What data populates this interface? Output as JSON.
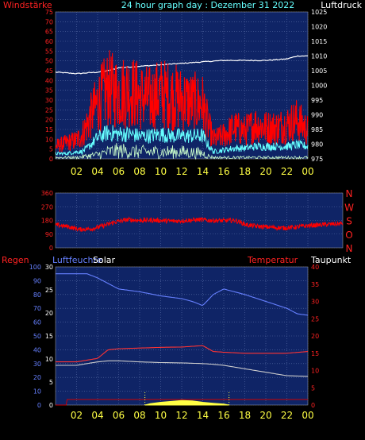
{
  "title": "24 hour graph day : Dezember 31 2022",
  "chart_data": [
    {
      "type": "line",
      "label_left": "Windstärke",
      "label_right": "Luftdruck",
      "x_ticks": [
        "02",
        "04",
        "06",
        "08",
        "10",
        "12",
        "14",
        "16",
        "18",
        "20",
        "22",
        "00"
      ],
      "y_left_ticks": [
        "0",
        "5",
        "10",
        "15",
        "20",
        "25",
        "30",
        "35",
        "40",
        "45",
        "50",
        "55",
        "60",
        "65",
        "70",
        "75"
      ],
      "y_left_lim": [
        0,
        75
      ],
      "y_right_ticks": [
        "975",
        "980",
        "985",
        "990",
        "995",
        "1000",
        "1005",
        "1010",
        "1015",
        "1020",
        "1025"
      ],
      "y_right_lim": [
        975,
        1025
      ],
      "series": [
        {
          "key": "pressure",
          "axis": "right",
          "color": "#ffffff",
          "x": [
            0,
            2,
            4,
            5,
            6,
            8,
            10,
            12,
            14,
            16,
            18,
            20,
            22,
            23,
            24
          ],
          "values": [
            1004.5,
            1004.0,
            1004.5,
            1005.0,
            1006.0,
            1006.5,
            1007.0,
            1007.5,
            1008.0,
            1008.5,
            1008.5,
            1008.5,
            1009.0,
            1010.0,
            1010.0
          ]
        },
        {
          "key": "gust",
          "axis": "left",
          "color": "#ff0000",
          "x": [
            0,
            1,
            2,
            2.5,
            3,
            4,
            5,
            6,
            7,
            8,
            9,
            10,
            11,
            12,
            13,
            14,
            14.5,
            15,
            16,
            17,
            18,
            19,
            20,
            21,
            22,
            23,
            24
          ],
          "values": [
            8,
            10,
            12,
            15,
            22,
            36,
            45,
            42,
            44,
            40,
            38,
            42,
            40,
            38,
            36,
            35,
            22,
            12,
            15,
            20,
            18,
            22,
            20,
            20,
            22,
            25,
            18
          ]
        },
        {
          "key": "wind",
          "axis": "left",
          "color": "#66ffff",
          "x": [
            0,
            1,
            2,
            2.5,
            3,
            4,
            5,
            6,
            7,
            8,
            9,
            10,
            11,
            12,
            13,
            14,
            14.5,
            15,
            16,
            17,
            18,
            19,
            20,
            21,
            22,
            23,
            24
          ],
          "values": [
            3,
            3,
            4,
            4,
            6,
            12,
            15,
            14,
            14,
            13,
            13,
            14,
            13,
            13,
            13,
            13,
            8,
            4,
            5,
            6,
            6,
            7,
            7,
            7,
            7,
            8,
            7
          ]
        },
        {
          "key": "calm",
          "axis": "left",
          "color": "#ccffcc",
          "x": [
            0,
            2,
            3,
            4,
            5,
            6,
            8,
            10,
            12,
            14,
            14.5,
            15,
            16,
            18,
            20,
            22,
            24
          ],
          "values": [
            1,
            1,
            2,
            3,
            5,
            6,
            5,
            5,
            5,
            4,
            2,
            1,
            1,
            1,
            1,
            1,
            1
          ]
        }
      ]
    },
    {
      "type": "line",
      "y_ticks": [
        "0",
        "90",
        "180",
        "270",
        "360"
      ],
      "y_lim": [
        0,
        360
      ],
      "direction_labels": [
        "N",
        "W",
        "S",
        "O",
        "N"
      ],
      "x": [
        0,
        1,
        2,
        3,
        4,
        5,
        6,
        7,
        8,
        9,
        10,
        11,
        12,
        13,
        14,
        15,
        16,
        17,
        18,
        19,
        20,
        21,
        22,
        23,
        24
      ],
      "values": [
        150,
        140,
        120,
        125,
        145,
        170,
        185,
        180,
        182,
        178,
        175,
        180,
        185,
        180,
        178,
        180,
        150,
        140,
        135,
        130,
        135,
        145,
        150,
        155,
        160
      ],
      "color": "#ff0000"
    },
    {
      "type": "line",
      "labels": {
        "regen": "Regen",
        "luftfeuchte": "Luftfeuchte",
        "solar": "Solar",
        "temperatur": "Temperatur",
        "taupunkt": "Taupunkt"
      },
      "y_left1_ticks": [
        "0",
        "10",
        "20",
        "30",
        "40",
        "50",
        "60",
        "70",
        "80",
        "90",
        "100"
      ],
      "y_left1_lim": [
        0,
        100
      ],
      "y_left2_ticks": [
        "0",
        "5",
        "10",
        "15",
        "20",
        "25",
        "30"
      ],
      "y_left2_lim": [
        0,
        30
      ],
      "y_right_ticks": [
        "0",
        "5",
        "10",
        "15",
        "20",
        "25",
        "30",
        "35",
        "40"
      ],
      "y_right_lim": [
        0,
        40
      ],
      "series": [
        {
          "key": "humidity",
          "axis": "left1",
          "color": "#6680ff",
          "x": [
            0,
            2,
            3,
            4,
            5,
            6,
            8,
            10,
            12,
            13,
            14,
            15,
            16,
            18,
            20,
            22,
            23,
            24
          ],
          "values": [
            95,
            95,
            95,
            92,
            88,
            84,
            82,
            79,
            77,
            75,
            72,
            80,
            84,
            80,
            75,
            70,
            66,
            65
          ]
        },
        {
          "key": "temperature",
          "axis": "right",
          "color": "#ff3333",
          "x": [
            0,
            2,
            3,
            4,
            5,
            6,
            8,
            10,
            12,
            14,
            15,
            16,
            18,
            20,
            22,
            24
          ],
          "values": [
            12.5,
            12.5,
            13.0,
            13.5,
            16.0,
            16.3,
            16.5,
            16.7,
            16.8,
            17.2,
            15.5,
            15.3,
            15.0,
            15.0,
            15.0,
            15.5
          ]
        },
        {
          "key": "dewpoint",
          "axis": "right",
          "color": "#cccccc",
          "x": [
            0,
            2,
            3,
            4,
            5,
            6,
            8,
            10,
            12,
            14,
            15,
            16,
            18,
            20,
            22,
            24
          ],
          "values": [
            11.5,
            11.5,
            12.0,
            12.5,
            12.8,
            12.8,
            12.5,
            12.3,
            12.2,
            12.0,
            11.8,
            11.5,
            10.5,
            9.5,
            8.5,
            8.3
          ]
        },
        {
          "key": "rain",
          "axis": "left1",
          "color": "#cc0000",
          "x": [
            0,
            1,
            1.1,
            24
          ],
          "values": [
            0,
            0,
            4,
            4
          ]
        },
        {
          "key": "solar",
          "axis": "left2",
          "color": "#ffff44",
          "x": [
            8.5,
            9,
            10,
            11,
            12,
            13,
            14,
            15,
            16,
            16.5
          ],
          "values": [
            0,
            0.3,
            0.6,
            0.8,
            1.0,
            0.9,
            0.6,
            0.4,
            0.2,
            0
          ]
        }
      ],
      "x_ticks": [
        "02",
        "04",
        "06",
        "08",
        "10",
        "12",
        "14",
        "16",
        "18",
        "20",
        "22",
        "00"
      ]
    }
  ]
}
